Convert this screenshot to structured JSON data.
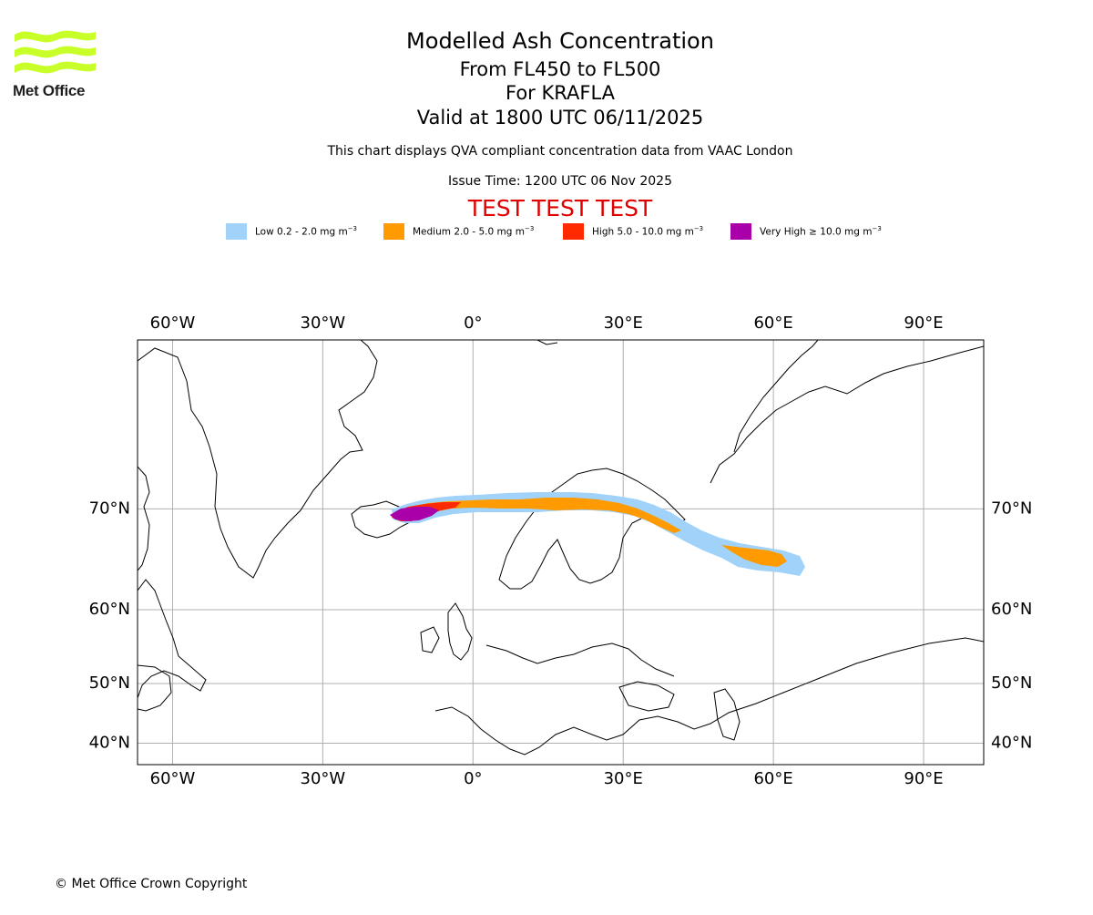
{
  "logo": {
    "text": "Met Office"
  },
  "header": {
    "title": "Modelled Ash Concentration",
    "level_range": "From FL450 to FL500",
    "volcano": "For KRAFLA",
    "valid_time": "Valid at 1800 UTC 06/11/2025",
    "note": "This chart displays QVA compliant concentration data from VAAC London",
    "issue_time": "Issue Time: 1200 UTC 06 Nov 2025",
    "test_banner": "TEST TEST TEST"
  },
  "legend": [
    {
      "label": "Low 0.2 - 2.0 mg m",
      "unit_exp": "−3",
      "color": "#a0d2fa"
    },
    {
      "label": "Medium 2.0 - 5.0 mg m",
      "unit_exp": "−3",
      "color": "#ff9a00"
    },
    {
      "label": "High 5.0 - 10.0 mg m",
      "unit_exp": "−3",
      "color": "#ff2a00"
    },
    {
      "label": "Very High  ≥  10.0 mg m",
      "unit_exp": "−3",
      "color": "#aa00aa"
    }
  ],
  "map": {
    "projection": "mercator",
    "lon_range": [
      -67,
      102
    ],
    "lat_range": [
      36,
      80
    ],
    "lon_ticks": [
      {
        "lon": -60,
        "label": "60°W"
      },
      {
        "lon": -30,
        "label": "30°W"
      },
      {
        "lon": 0,
        "label": "0°"
      },
      {
        "lon": 30,
        "label": "30°E"
      },
      {
        "lon": 60,
        "label": "60°E"
      },
      {
        "lon": 90,
        "label": "90°E"
      }
    ],
    "lat_ticks": [
      {
        "lat": 70,
        "label": "70°N"
      },
      {
        "lat": 60,
        "label": "60°N"
      },
      {
        "lat": 50,
        "label": "50°N"
      },
      {
        "lat": 40,
        "label": "40°N"
      }
    ],
    "grid": true
  },
  "footer": {
    "copyright": "© Met Office Crown Copyright"
  }
}
